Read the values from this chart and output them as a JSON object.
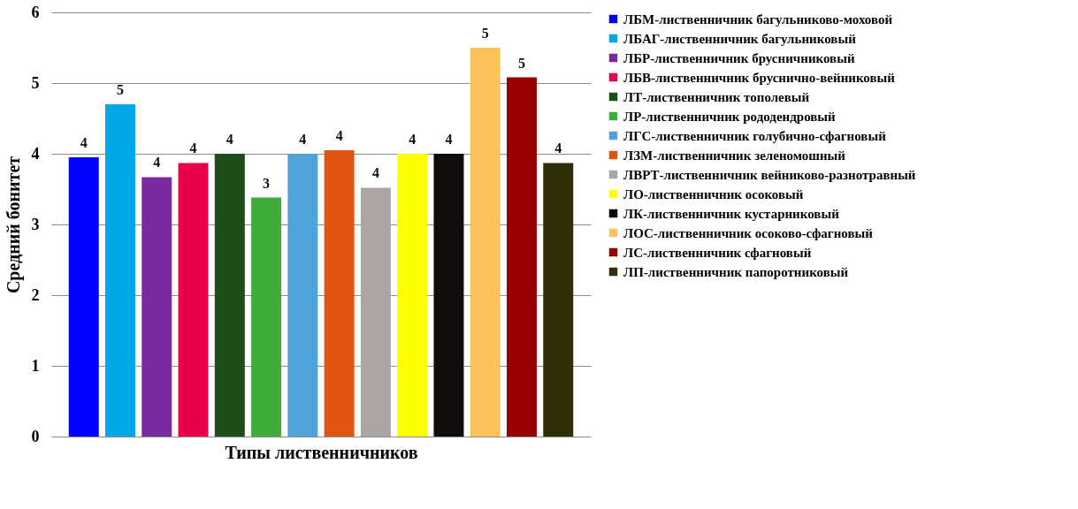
{
  "chart_data": {
    "type": "bar",
    "xlabel": "Типы лиственничников",
    "ylabel": "Средний бонитет",
    "categories": [
      null,
      null,
      null,
      null,
      null,
      null,
      null,
      null,
      null,
      null,
      null,
      null,
      null,
      null
    ],
    "ylim": [
      0,
      6
    ],
    "yticks": [
      0,
      1,
      2,
      3,
      4,
      5,
      6
    ],
    "grid": "y",
    "legend": "right",
    "series": [
      {
        "name": "ЛБМ-лиственничник багульниково-моховой",
        "color": "#0000ff",
        "values": [
          3.95,
          null,
          null,
          null,
          null,
          null,
          null,
          null,
          null,
          null,
          null,
          null,
          null,
          null
        ],
        "value_labels": [
          "4",
          null,
          null,
          null,
          null,
          null,
          null,
          null,
          null,
          null,
          null,
          null,
          null,
          null
        ]
      },
      {
        "name": "ЛБАГ-лиственничник багульниковый",
        "color": "#00a8e8",
        "values": [
          null,
          4.7,
          null,
          null,
          null,
          null,
          null,
          null,
          null,
          null,
          null,
          null,
          null,
          null
        ],
        "value_labels": [
          null,
          "5",
          null,
          null,
          null,
          null,
          null,
          null,
          null,
          null,
          null,
          null,
          null,
          null
        ]
      },
      {
        "name": "ЛБР-лиственничник брусничниковый",
        "color": "#7a2aa0",
        "values": [
          null,
          null,
          3.67,
          null,
          null,
          null,
          null,
          null,
          null,
          null,
          null,
          null,
          null,
          null
        ],
        "value_labels": [
          null,
          null,
          "4",
          null,
          null,
          null,
          null,
          null,
          null,
          null,
          null,
          null,
          null,
          null
        ]
      },
      {
        "name": "ЛБВ-лиственничник бруснично-вейниковый",
        "color": "#e8004a",
        "values": [
          null,
          null,
          null,
          3.87,
          null,
          null,
          null,
          null,
          null,
          null,
          null,
          null,
          null,
          null
        ],
        "value_labels": [
          null,
          null,
          null,
          "4",
          null,
          null,
          null,
          null,
          null,
          null,
          null,
          null,
          null,
          null
        ]
      },
      {
        "name": "ЛТ-лиственничник тополевый",
        "color": "#1e4d1a",
        "values": [
          null,
          null,
          null,
          null,
          4.0,
          null,
          null,
          null,
          null,
          null,
          null,
          null,
          null,
          null
        ],
        "value_labels": [
          null,
          null,
          null,
          null,
          "4",
          null,
          null,
          null,
          null,
          null,
          null,
          null,
          null,
          null
        ]
      },
      {
        "name": "ЛР-лиственничник рододендровый",
        "color": "#3fad3a",
        "values": [
          null,
          null,
          null,
          null,
          null,
          3.38,
          null,
          null,
          null,
          null,
          null,
          null,
          null,
          null
        ],
        "value_labels": [
          null,
          null,
          null,
          null,
          null,
          "3",
          null,
          null,
          null,
          null,
          null,
          null,
          null,
          null
        ]
      },
      {
        "name": "ЛГС-лиственничник голубично-сфагновый",
        "color": "#4fa3d8",
        "values": [
          null,
          null,
          null,
          null,
          null,
          null,
          4.0,
          null,
          null,
          null,
          null,
          null,
          null,
          null
        ],
        "value_labels": [
          null,
          null,
          null,
          null,
          null,
          null,
          "4",
          null,
          null,
          null,
          null,
          null,
          null,
          null
        ]
      },
      {
        "name": "ЛЗМ-лиственничник зеленомошный",
        "color": "#de5410",
        "values": [
          null,
          null,
          null,
          null,
          null,
          null,
          null,
          4.05,
          null,
          null,
          null,
          null,
          null,
          null
        ],
        "value_labels": [
          null,
          null,
          null,
          null,
          null,
          null,
          null,
          "4",
          null,
          null,
          null,
          null,
          null,
          null
        ]
      },
      {
        "name": "ЛВРТ-лиственничник вейниково-разнотравный",
        "color": "#aca5a5",
        "values": [
          null,
          null,
          null,
          null,
          null,
          null,
          null,
          null,
          3.52,
          null,
          null,
          null,
          null,
          null
        ],
        "value_labels": [
          null,
          null,
          null,
          null,
          null,
          null,
          null,
          null,
          "4",
          null,
          null,
          null,
          null,
          null
        ]
      },
      {
        "name": "ЛО-лиственничник осоковый",
        "color": "#ffff00",
        "values": [
          null,
          null,
          null,
          null,
          null,
          null,
          null,
          null,
          null,
          4.0,
          null,
          null,
          null,
          null
        ],
        "value_labels": [
          null,
          null,
          null,
          null,
          null,
          null,
          null,
          null,
          null,
          "4",
          null,
          null,
          null,
          null
        ]
      },
      {
        "name": "ЛК-лиственничник кустарниковый",
        "color": "#100c0c",
        "values": [
          null,
          null,
          null,
          null,
          null,
          null,
          null,
          null,
          null,
          null,
          4.0,
          null,
          null,
          null
        ],
        "value_labels": [
          null,
          null,
          null,
          null,
          null,
          null,
          null,
          null,
          null,
          null,
          "4",
          null,
          null,
          null
        ]
      },
      {
        "name": "ЛОС-лиственничник осоково-сфагновый",
        "color": "#fcc35a",
        "values": [
          null,
          null,
          null,
          null,
          null,
          null,
          null,
          null,
          null,
          null,
          null,
          5.5,
          null,
          null
        ],
        "value_labels": [
          null,
          null,
          null,
          null,
          null,
          null,
          null,
          null,
          null,
          null,
          null,
          "5",
          null,
          null
        ]
      },
      {
        "name": "ЛС-лиственничник сфагновый",
        "color": "#960000",
        "values": [
          null,
          null,
          null,
          null,
          null,
          null,
          null,
          null,
          null,
          null,
          null,
          null,
          5.08,
          null
        ],
        "value_labels": [
          null,
          null,
          null,
          null,
          null,
          null,
          null,
          null,
          null,
          null,
          null,
          null,
          "5",
          null
        ]
      },
      {
        "name": "ЛП-лиственничник папоротниковый",
        "color": "#2e2e08",
        "values": [
          null,
          null,
          null,
          null,
          null,
          null,
          null,
          null,
          null,
          null,
          null,
          null,
          null,
          3.87
        ],
        "value_labels": [
          null,
          null,
          null,
          null,
          null,
          null,
          null,
          null,
          null,
          null,
          null,
          null,
          null,
          "4"
        ]
      }
    ]
  }
}
